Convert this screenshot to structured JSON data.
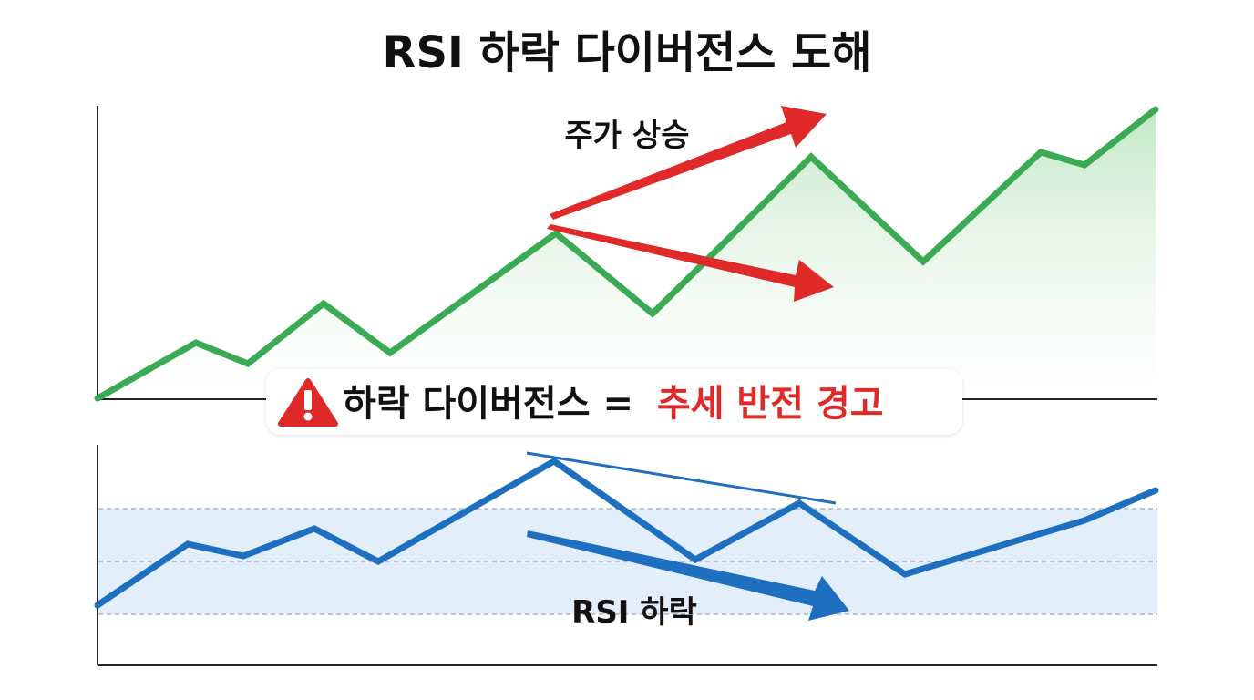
{
  "title": "RSI 하락 다이버전스 도해",
  "annotations": {
    "price_rising": "주가 상승",
    "rsi_falling": "RSI 하락"
  },
  "banner": {
    "prefix": "하락 다이버전스 =",
    "highlight": "추세 반전 경고",
    "icon": "warning-triangle-icon"
  },
  "colors": {
    "price_line": "#3aaa55",
    "price_fill": "#cfeccf",
    "rsi_line": "#1f6fc0",
    "rsi_band": "#e2eefa",
    "price_arrow": "#e02a2a",
    "rsi_arrow": "#1f6fc0",
    "warning_red": "#e02a2a",
    "axis": "#222222"
  }
}
